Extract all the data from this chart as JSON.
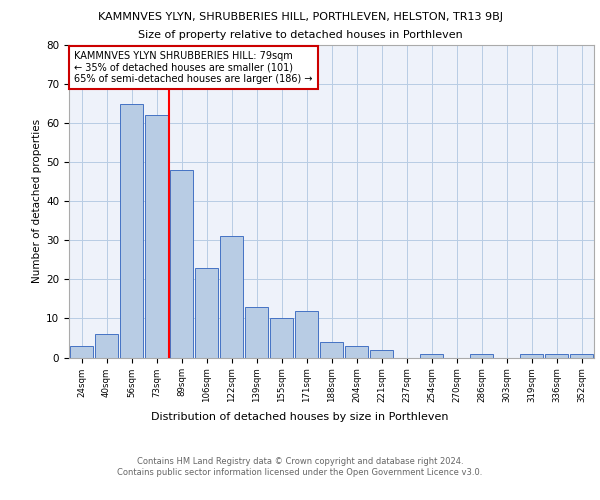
{
  "title": "KAMMNVES YLYN, SHRUBBERIES HILL, PORTHLEVEN, HELSTON, TR13 9BJ",
  "subtitle": "Size of property relative to detached houses in Porthleven",
  "xlabel": "Distribution of detached houses by size in Porthleven",
  "ylabel": "Number of detached properties",
  "categories": [
    "24sqm",
    "40sqm",
    "56sqm",
    "73sqm",
    "89sqm",
    "106sqm",
    "122sqm",
    "139sqm",
    "155sqm",
    "171sqm",
    "188sqm",
    "204sqm",
    "221sqm",
    "237sqm",
    "254sqm",
    "270sqm",
    "286sqm",
    "303sqm",
    "319sqm",
    "336sqm",
    "352sqm"
  ],
  "values": [
    3,
    6,
    65,
    62,
    48,
    23,
    31,
    13,
    10,
    12,
    4,
    3,
    2,
    0,
    1,
    0,
    1,
    0,
    1,
    1,
    1
  ],
  "bar_color": "#b8cce4",
  "bar_edge_color": "#4472c4",
  "red_line_x": 3.5,
  "annotation_text": "KAMMNVES YLYN SHRUBBERIES HILL: 79sqm\n← 35% of detached houses are smaller (101)\n65% of semi-detached houses are larger (186) →",
  "annotation_box_color": "#ffffff",
  "annotation_box_edge": "#cc0000",
  "footer": "Contains HM Land Registry data © Crown copyright and database right 2024.\nContains public sector information licensed under the Open Government Licence v3.0.",
  "grid_color": "#b8cce4",
  "background_color": "#eef2fa",
  "ylim": [
    0,
    80
  ],
  "yticks": [
    0,
    10,
    20,
    30,
    40,
    50,
    60,
    70,
    80
  ]
}
